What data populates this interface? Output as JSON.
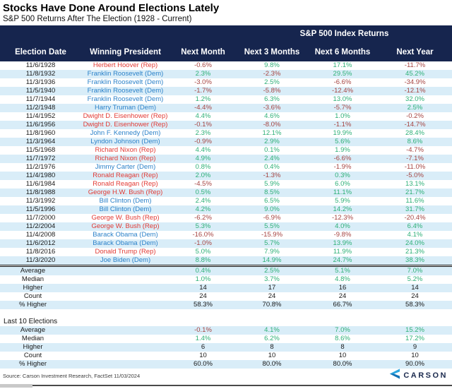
{
  "colors": {
    "header_bg": "#16254e",
    "stripe": "#d9edf8",
    "positive": "#2fb078",
    "negative": "#a64542",
    "dem": "#2c82c9",
    "rep": "#e23b35"
  },
  "chart_data": {
    "type": "table",
    "title": "Stocks Have Done Around Elections Lately",
    "subtitle": "S&P 500 Returns After The Election (1928 - Current)",
    "group_header": "S&P 500 Index Returns",
    "columns": [
      "Election Date",
      "Winning President",
      "Next Month",
      "Next 3 Months",
      "Next 6 Months",
      "Next Year"
    ],
    "rows": [
      {
        "date": "11/6/1928",
        "president": "Herbert Hoover (Rep)",
        "party": "rep",
        "values": [
          "-0.6%",
          "9.8%",
          "17.1%",
          "-11.7%"
        ]
      },
      {
        "date": "11/8/1932",
        "president": "Franklin Roosevelt (Dem)",
        "party": "dem",
        "values": [
          "2.3%",
          "-2.3%",
          "29.5%",
          "45.2%"
        ]
      },
      {
        "date": "11/3/1936",
        "president": "Franklin Roosevelt (Dem)",
        "party": "dem",
        "values": [
          "-3.0%",
          "2.5%",
          "-6.6%",
          "-34.9%"
        ]
      },
      {
        "date": "11/5/1940",
        "president": "Franklin Roosevelt (Dem)",
        "party": "dem",
        "values": [
          "-1.7%",
          "-5.8%",
          "-12.4%",
          "-12.1%"
        ]
      },
      {
        "date": "11/7/1944",
        "president": "Franklin Roosevelt (Dem)",
        "party": "dem",
        "values": [
          "1.2%",
          "6.3%",
          "13.0%",
          "32.0%"
        ]
      },
      {
        "date": "11/2/1948",
        "president": "Harry Truman (Dem)",
        "party": "dem",
        "values": [
          "-4.4%",
          "-3.6%",
          "-5.7%",
          "2.5%"
        ]
      },
      {
        "date": "11/4/1952",
        "president": "Dwight D. Eisenhower (Rep)",
        "party": "rep",
        "values": [
          "4.4%",
          "4.6%",
          "1.0%",
          "-0.2%"
        ]
      },
      {
        "date": "11/6/1956",
        "president": "Dwight D. Eisenhower (Rep)",
        "party": "rep",
        "values": [
          "-0.1%",
          "-8.0%",
          "-1.1%",
          "-14.7%"
        ]
      },
      {
        "date": "11/8/1960",
        "president": "John F. Kennedy (Dem)",
        "party": "dem",
        "values": [
          "2.3%",
          "12.1%",
          "19.9%",
          "28.4%"
        ]
      },
      {
        "date": "11/3/1964",
        "president": "Lyndon Johnson (Dem)",
        "party": "dem",
        "values": [
          "-0.9%",
          "2.9%",
          "5.6%",
          "8.6%"
        ]
      },
      {
        "date": "11/5/1968",
        "president": "Richard Nixon (Rep)",
        "party": "rep",
        "values": [
          "4.4%",
          "0.1%",
          "1.9%",
          "-4.7%"
        ]
      },
      {
        "date": "11/7/1972",
        "president": "Richard Nixon (Rep)",
        "party": "rep",
        "values": [
          "4.9%",
          "2.4%",
          "-6.6%",
          "-7.1%"
        ]
      },
      {
        "date": "11/2/1976",
        "president": "Jimmy Carter (Dem)",
        "party": "dem",
        "values": [
          "0.8%",
          "0.4%",
          "-1.9%",
          "-11.0%"
        ]
      },
      {
        "date": "11/4/1980",
        "president": "Ronald Reagan (Rep)",
        "party": "rep",
        "values": [
          "2.0%",
          "-1.3%",
          "0.3%",
          "-5.0%"
        ]
      },
      {
        "date": "11/6/1984",
        "president": "Ronald Reagan (Rep)",
        "party": "rep",
        "values": [
          "-4.5%",
          "5.9%",
          "6.0%",
          "13.1%"
        ]
      },
      {
        "date": "11/8/1988",
        "president": "George H.W. Bush (Rep)",
        "party": "rep",
        "values": [
          "0.5%",
          "8.5%",
          "11.1%",
          "21.7%"
        ]
      },
      {
        "date": "11/3/1992",
        "president": "Bill Clinton (Dem)",
        "party": "dem",
        "values": [
          "2.4%",
          "6.5%",
          "5.9%",
          "11.6%"
        ]
      },
      {
        "date": "11/5/1996",
        "president": "Bill Clinton (Dem)",
        "party": "dem",
        "values": [
          "4.2%",
          "9.0%",
          "14.2%",
          "31.7%"
        ]
      },
      {
        "date": "11/7/2000",
        "president": "George W. Bush (Rep)",
        "party": "rep",
        "values": [
          "-6.2%",
          "-6.9%",
          "-12.3%",
          "-20.4%"
        ]
      },
      {
        "date": "11/2/2004",
        "president": "George W. Bush (Rep)",
        "party": "rep",
        "values": [
          "5.3%",
          "5.5%",
          "4.0%",
          "6.4%"
        ]
      },
      {
        "date": "11/4/2008",
        "president": "Barack Obama (Dem)",
        "party": "dem",
        "values": [
          "-16.0%",
          "-15.9%",
          "-9.8%",
          "4.1%"
        ]
      },
      {
        "date": "11/6/2012",
        "president": "Barack Obama (Dem)",
        "party": "dem",
        "values": [
          "-1.0%",
          "5.7%",
          "13.9%",
          "24.0%"
        ]
      },
      {
        "date": "11/8/2016",
        "president": "Donald Trump (Rep)",
        "party": "rep",
        "values": [
          "5.0%",
          "7.9%",
          "11.9%",
          "21.3%"
        ]
      },
      {
        "date": "11/3/2020",
        "president": "Joe Biden (Dem)",
        "party": "dem",
        "values": [
          "8.8%",
          "14.9%",
          "24.7%",
          "38.3%"
        ]
      }
    ],
    "summary_all": [
      {
        "label": "Average",
        "values": [
          "0.4%",
          "2.5%",
          "5.1%",
          "7.0%"
        ],
        "colored": true
      },
      {
        "label": "Median",
        "values": [
          "1.0%",
          "3.7%",
          "4.8%",
          "5.2%"
        ],
        "colored": true
      },
      {
        "label": "Higher",
        "values": [
          "14",
          "17",
          "16",
          "14"
        ],
        "colored": false
      },
      {
        "label": "Count",
        "values": [
          "24",
          "24",
          "24",
          "24"
        ],
        "colored": false
      },
      {
        "label": "% Higher",
        "values": [
          "58.3%",
          "70.8%",
          "66.7%",
          "58.3%"
        ],
        "colored": false
      }
    ],
    "last10_label": "Last 10 Elections",
    "summary_last10": [
      {
        "label": "Average",
        "values": [
          "-0.1%",
          "4.1%",
          "7.0%",
          "15.2%"
        ],
        "colored": true
      },
      {
        "label": "Median",
        "values": [
          "1.4%",
          "6.2%",
          "8.6%",
          "17.2%"
        ],
        "colored": true
      },
      {
        "label": "Higher",
        "values": [
          "6",
          "8",
          "8",
          "9"
        ],
        "colored": false
      },
      {
        "label": "Count",
        "values": [
          "10",
          "10",
          "10",
          "10"
        ],
        "colored": false
      },
      {
        "label": "% Higher",
        "values": [
          "60.0%",
          "80.0%",
          "80.0%",
          "90.0%"
        ],
        "colored": false
      }
    ]
  },
  "footer": {
    "source": "Source: Carson Investment Research, FactSet 11/03/2024",
    "logo_text": "CARSON"
  }
}
